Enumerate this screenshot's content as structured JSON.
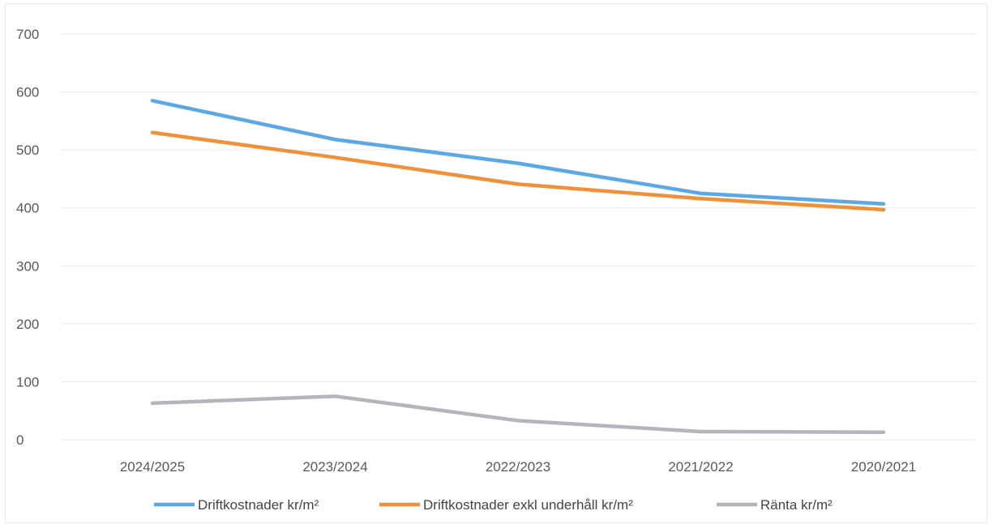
{
  "chart_data": {
    "type": "line",
    "title": "",
    "xlabel": "",
    "ylabel": "",
    "ylim": [
      0,
      700
    ],
    "y_ticks": [
      "0",
      "100",
      "200",
      "300",
      "400",
      "500",
      "600",
      "700"
    ],
    "categories": [
      "2024/2025",
      "2023/2024",
      "2022/2023",
      "2021/2022",
      "2020/2021"
    ],
    "grid": "horizontal",
    "legend_position": "bottom",
    "series": [
      {
        "name": "Driftkostnader kr/m²",
        "color": "#5aa9e6",
        "values": [
          585,
          518,
          477,
          425,
          407
        ]
      },
      {
        "name": "Driftkostnader exkl underhåll kr/m²",
        "color": "#f0913a",
        "values": [
          530,
          487,
          441,
          416,
          397
        ]
      },
      {
        "name": "Ränta kr/m²",
        "color": "#b4b4bc",
        "values": [
          63,
          75,
          33,
          14,
          13
        ]
      }
    ]
  }
}
